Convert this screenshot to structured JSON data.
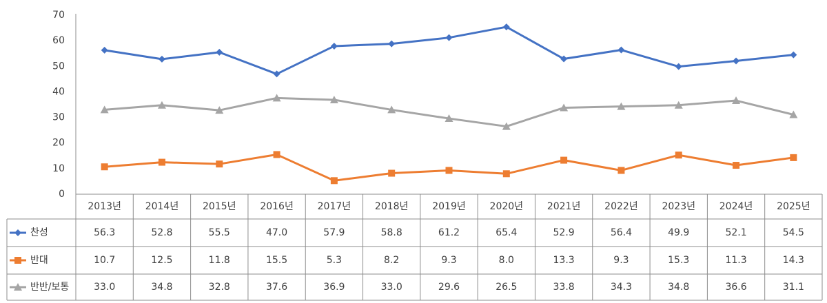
{
  "chart_data": {
    "type": "line",
    "categories": [
      "2013년",
      "2014년",
      "2015년",
      "2016년",
      "2017년",
      "2018년",
      "2019년",
      "2020년",
      "2021년",
      "2022년",
      "2023년",
      "2024년",
      "2025년"
    ],
    "series": [
      {
        "name": "찬성",
        "color": "#4472c4",
        "marker": "diamond",
        "values": [
          56.3,
          52.8,
          55.5,
          47.0,
          57.9,
          58.8,
          61.2,
          65.4,
          52.9,
          56.4,
          49.9,
          52.1,
          54.5
        ],
        "value_labels": [
          "56.3",
          "52.8",
          "55.5",
          "47.0",
          "57.9",
          "58.8",
          "61.2",
          "65.4",
          "52.9",
          "56.4",
          "49.9",
          "52.1",
          "54.5"
        ]
      },
      {
        "name": "반대",
        "color": "#ed7d31",
        "marker": "square",
        "values": [
          10.7,
          12.5,
          11.8,
          15.5,
          5.3,
          8.2,
          9.3,
          8.0,
          13.3,
          9.3,
          15.3,
          11.3,
          14.3
        ],
        "value_labels": [
          "10.7",
          "12.5",
          "11.8",
          "15.5",
          "5.3",
          "8.2",
          "9.3",
          "8.0",
          "13.3",
          "9.3",
          "15.3",
          "11.3",
          "14.3"
        ]
      },
      {
        "name": "반반/보통",
        "color": "#a5a5a5",
        "marker": "triangle",
        "values": [
          33.0,
          34.8,
          32.8,
          37.6,
          36.9,
          33.0,
          29.6,
          26.5,
          33.8,
          34.3,
          34.8,
          36.6,
          31.1
        ],
        "value_labels": [
          "33.0",
          "34.8",
          "32.8",
          "37.6",
          "36.9",
          "33.0",
          "29.6",
          "26.5",
          "33.8",
          "34.3",
          "34.8",
          "36.6",
          "31.1"
        ]
      }
    ],
    "ylim": [
      0,
      70
    ],
    "yticks": [
      0,
      10,
      20,
      30,
      40,
      50,
      60,
      70
    ],
    "grid": false
  }
}
